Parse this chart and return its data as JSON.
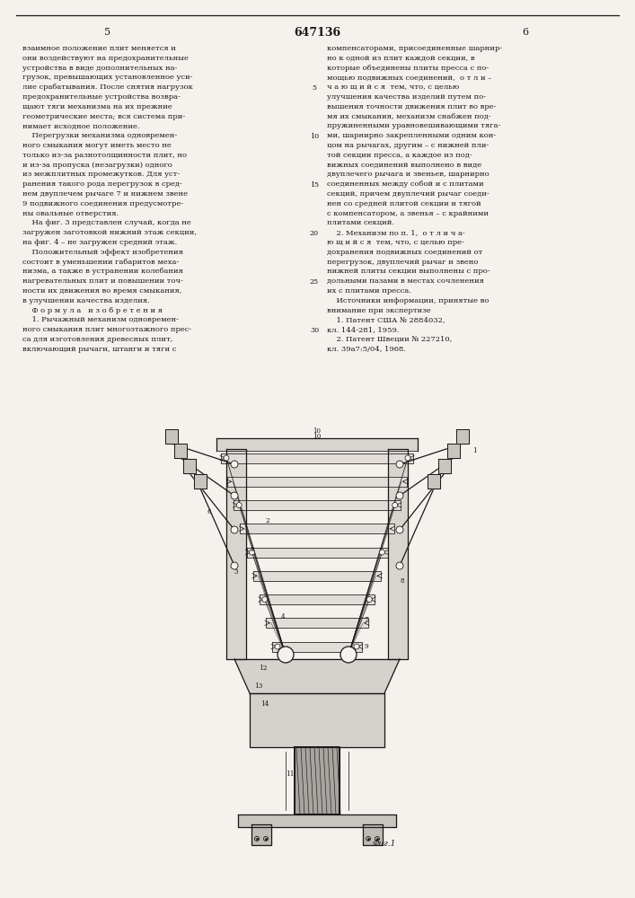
{
  "bg_color": "#f5f2ee",
  "text_color": "#1a1818",
  "page_num_left": "5",
  "page_num_center": "647136",
  "page_num_right": "6",
  "fig_caption": "Фиг.1",
  "left_col": [
    "взаимное положение плит меняется и",
    "они воздействуют на предохранительные",
    "устройства в виде дополнительных на-",
    "грузок, превышающих установленное уси-",
    "лие срабатывания. После снятия нагрузок",
    "предохранительные устройства возвра-",
    "щают тяги механизма на их прежние",
    "геометрические места; вся система при-",
    "нимает исходное положение.",
    "    Перегрузки механизма одновремен-",
    "ного смыкания могут иметь место не",
    "только из-за разнотолщинности плит, но",
    "и из-за пропуска (незагрузки) одного",
    "из межплитных промежутков. Для уст-",
    "ранения такого рода перегрузок в сред-",
    "нем двуплечем рычаге 7 и нижнем звене",
    "9 подвижного соединения предусмотре-",
    "ны овальные отверстия.",
    "    На фиг. 3 представлен случай, когда не",
    "загружен заготовкой нижний этаж секции,",
    "на фиг. 4 – не загружен средний этаж.",
    "    Положительный эффект изобретения",
    "состоит в уменьшении габаритов меха-",
    "низма, а также в устранении колебания",
    "нагревательных плит и повышении точ-",
    "ности их движения во время смыкания,",
    "в улучшении качества изделия.",
    "    Ф о р м у л а   и з о б р е т е н и я",
    "    1. Рычажный механизм одновремен-",
    "ного смыкания плит многоэтажного прес-",
    "са для изготовления древесных плит,",
    "включающий рычаги, штанги и тяги с"
  ],
  "right_col": [
    "компенсаторами, присоединенные шарнир-",
    "но к одной из плит каждой секции, в",
    "которые объединены плиты пресса с по-",
    "мощью подвижных соединений,  о т л и –",
    "ч а ю щ и й с я  тем, что, с целью",
    "улучшения качества изделий путем по-",
    "вышения точности движения плит во вре-",
    "мя их смыкания, механизм снабжен под-",
    "пружиненными уравновешивающими тяга-",
    "ми, шарнирно закрепленными одним кон-",
    "цом на рычагах, другим – с нижней пли-",
    "той секции пресса, а каждое из под-",
    "вижных соединений выполнено в виде",
    "двуплечего рычага и звеньев, шарнирно",
    "соединенных между собой и с плитами",
    "секций, причем двуплечий рычаг соеди-",
    "нен со средней плитой секции и тягой",
    "с компенсатором, а звенья – с крайними",
    "плитами секций.",
    "    2. Механизм по п. 1,  о т л и ч а-",
    "ю щ и й с я  тем, что, с целью пре-",
    "дохранения подвижных соединений от",
    "перегрузок, двуплечий рычаг и звено",
    "нижней плиты секции выполнены с про-",
    "дольными пазами в местах сочленения",
    "их с плитами пресса.",
    "    Источники информации, принятые во",
    "внимание при экспертизе",
    "    1. Патент США № 2884032,",
    "кл. 144-281, 1959.",
    "    2. Патент Швеции № 227210,",
    "кл. 39а7:5/04, 1968."
  ]
}
